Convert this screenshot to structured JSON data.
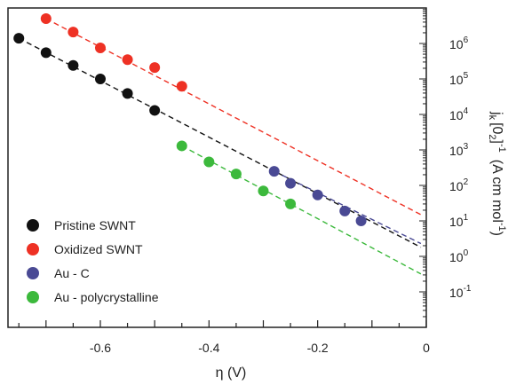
{
  "chart_data": {
    "type": "scatter",
    "title": "",
    "xlabel": "η (V)",
    "ylabel_base": "j",
    "ylabel_k": "k",
    "ylabel_bracket": "[0",
    "ylabel_sub2": "2",
    "ylabel_rest": "]",
    "ylabel_exp": "-1",
    "ylabel_unit_open": "(A cm mol",
    "ylabel_unit_exp": "-1",
    "ylabel_unit_close": ")",
    "xlim": [
      -0.77,
      0.0
    ],
    "ylim_log10": [
      -2.0,
      7.0
    ],
    "y_scale": "log",
    "grid": false,
    "legend_position": "bottom-left",
    "x_ticks": [
      -0.6,
      -0.4,
      -0.2,
      0
    ],
    "x_tick_labels": [
      "-0.6",
      "-0.4",
      "-0.2",
      "0"
    ],
    "y_tick_base": "10",
    "y_tick_exponents": [
      "6",
      "5",
      "4",
      "3",
      "2",
      "1",
      "0",
      "-1"
    ],
    "y_tick_values_log10": [
      6,
      5,
      4,
      3,
      2,
      1,
      0,
      -1
    ],
    "series": [
      {
        "name": "Pristine SWNT",
        "color": "#111111",
        "x": [
          -0.75,
          -0.7,
          -0.65,
          -0.6,
          -0.55,
          -0.5
        ],
        "y": [
          1400000.0,
          550000.0,
          240000.0,
          100000.0,
          39000.0,
          13000.0
        ],
        "fit_x": [
          -0.75,
          -0.01
        ],
        "fit_y": [
          1400000.0,
          1.8
        ]
      },
      {
        "name": "Oxidized SWNT",
        "color": "#ee3124",
        "x": [
          -0.7,
          -0.65,
          -0.6,
          -0.55,
          -0.5,
          -0.45
        ],
        "y": [
          5000000.0,
          2100000.0,
          750000.0,
          350000.0,
          210000.0,
          62000.0
        ],
        "fit_x": [
          -0.7,
          -0.01
        ],
        "fit_y": [
          5000000.0,
          15.0
        ]
      },
      {
        "name": "Au - C",
        "color": "#4a4a94",
        "x": [
          -0.28,
          -0.25,
          -0.2,
          -0.15,
          -0.12
        ],
        "y": [
          250,
          115,
          54,
          19,
          10
        ],
        "fit_x": [
          -0.28,
          -0.01
        ],
        "fit_y": [
          250,
          2.3
        ]
      },
      {
        "name": "Au - polycrystalline",
        "color": "#3cb93c",
        "x": [
          -0.45,
          -0.4,
          -0.35,
          -0.3,
          -0.25
        ],
        "y": [
          1300,
          460,
          210,
          70,
          30
        ],
        "fit_x": [
          -0.45,
          -0.01
        ],
        "fit_y": [
          1300,
          0.32
        ]
      }
    ]
  }
}
